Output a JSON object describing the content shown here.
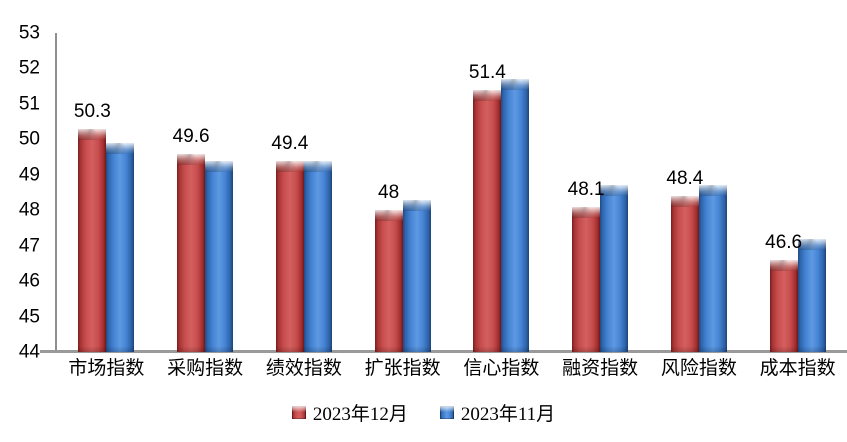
{
  "chart_data": {
    "type": "bar",
    "title": "",
    "xlabel": "",
    "ylabel": "",
    "categories": [
      "市场指数",
      "采购指数",
      "绩效指数",
      "扩张指数",
      "信心指数",
      "融资指数",
      "风险指数",
      "成本指数"
    ],
    "series": [
      {
        "name": "2023年12月",
        "color": "#c24541",
        "values": [
          50.3,
          49.6,
          49.4,
          48,
          51.4,
          48.1,
          48.4,
          46.6
        ]
      },
      {
        "name": "2023年11月",
        "color": "#4587d7",
        "values": [
          49.9,
          49.4,
          49.4,
          48.3,
          51.7,
          48.7,
          48.7,
          47.2
        ]
      }
    ],
    "data_labels": {
      "series_index": 0,
      "labels": [
        "50.3",
        "49.6",
        "49.4",
        "48",
        "51.4",
        "48.1",
        "48.4",
        "46.6"
      ]
    },
    "ylim": [
      44,
      53
    ],
    "ytick_step": 1,
    "ytick_labels": [
      "53",
      "52",
      "51",
      "50",
      "49",
      "48",
      "47",
      "46",
      "45",
      "44"
    ],
    "grid": false,
    "legend_position": "bottom"
  },
  "colors": {
    "axis_line": "#8f8f8f",
    "label_text": "#000000"
  }
}
